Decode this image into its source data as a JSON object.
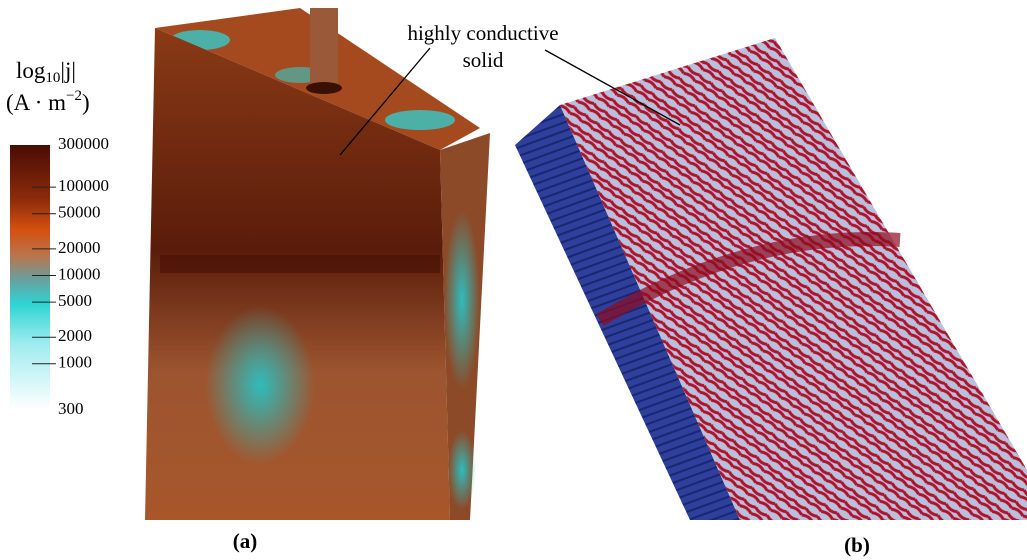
{
  "colorbar": {
    "title": {
      "base": "log",
      "sub": "10",
      "rest": "|j|"
    },
    "units": {
      "base": "(A · m",
      "exp": "−2",
      "close": ")"
    },
    "range": [
      300,
      300000
    ],
    "log": true,
    "ticks": [
      300000,
      100000,
      50000,
      20000,
      10000,
      5000,
      2000,
      1000,
      300
    ]
  },
  "annotation": {
    "line1": "highly conductive",
    "line2": "solid"
  },
  "panels": {
    "a": "(a)",
    "b": "(b)"
  }
}
